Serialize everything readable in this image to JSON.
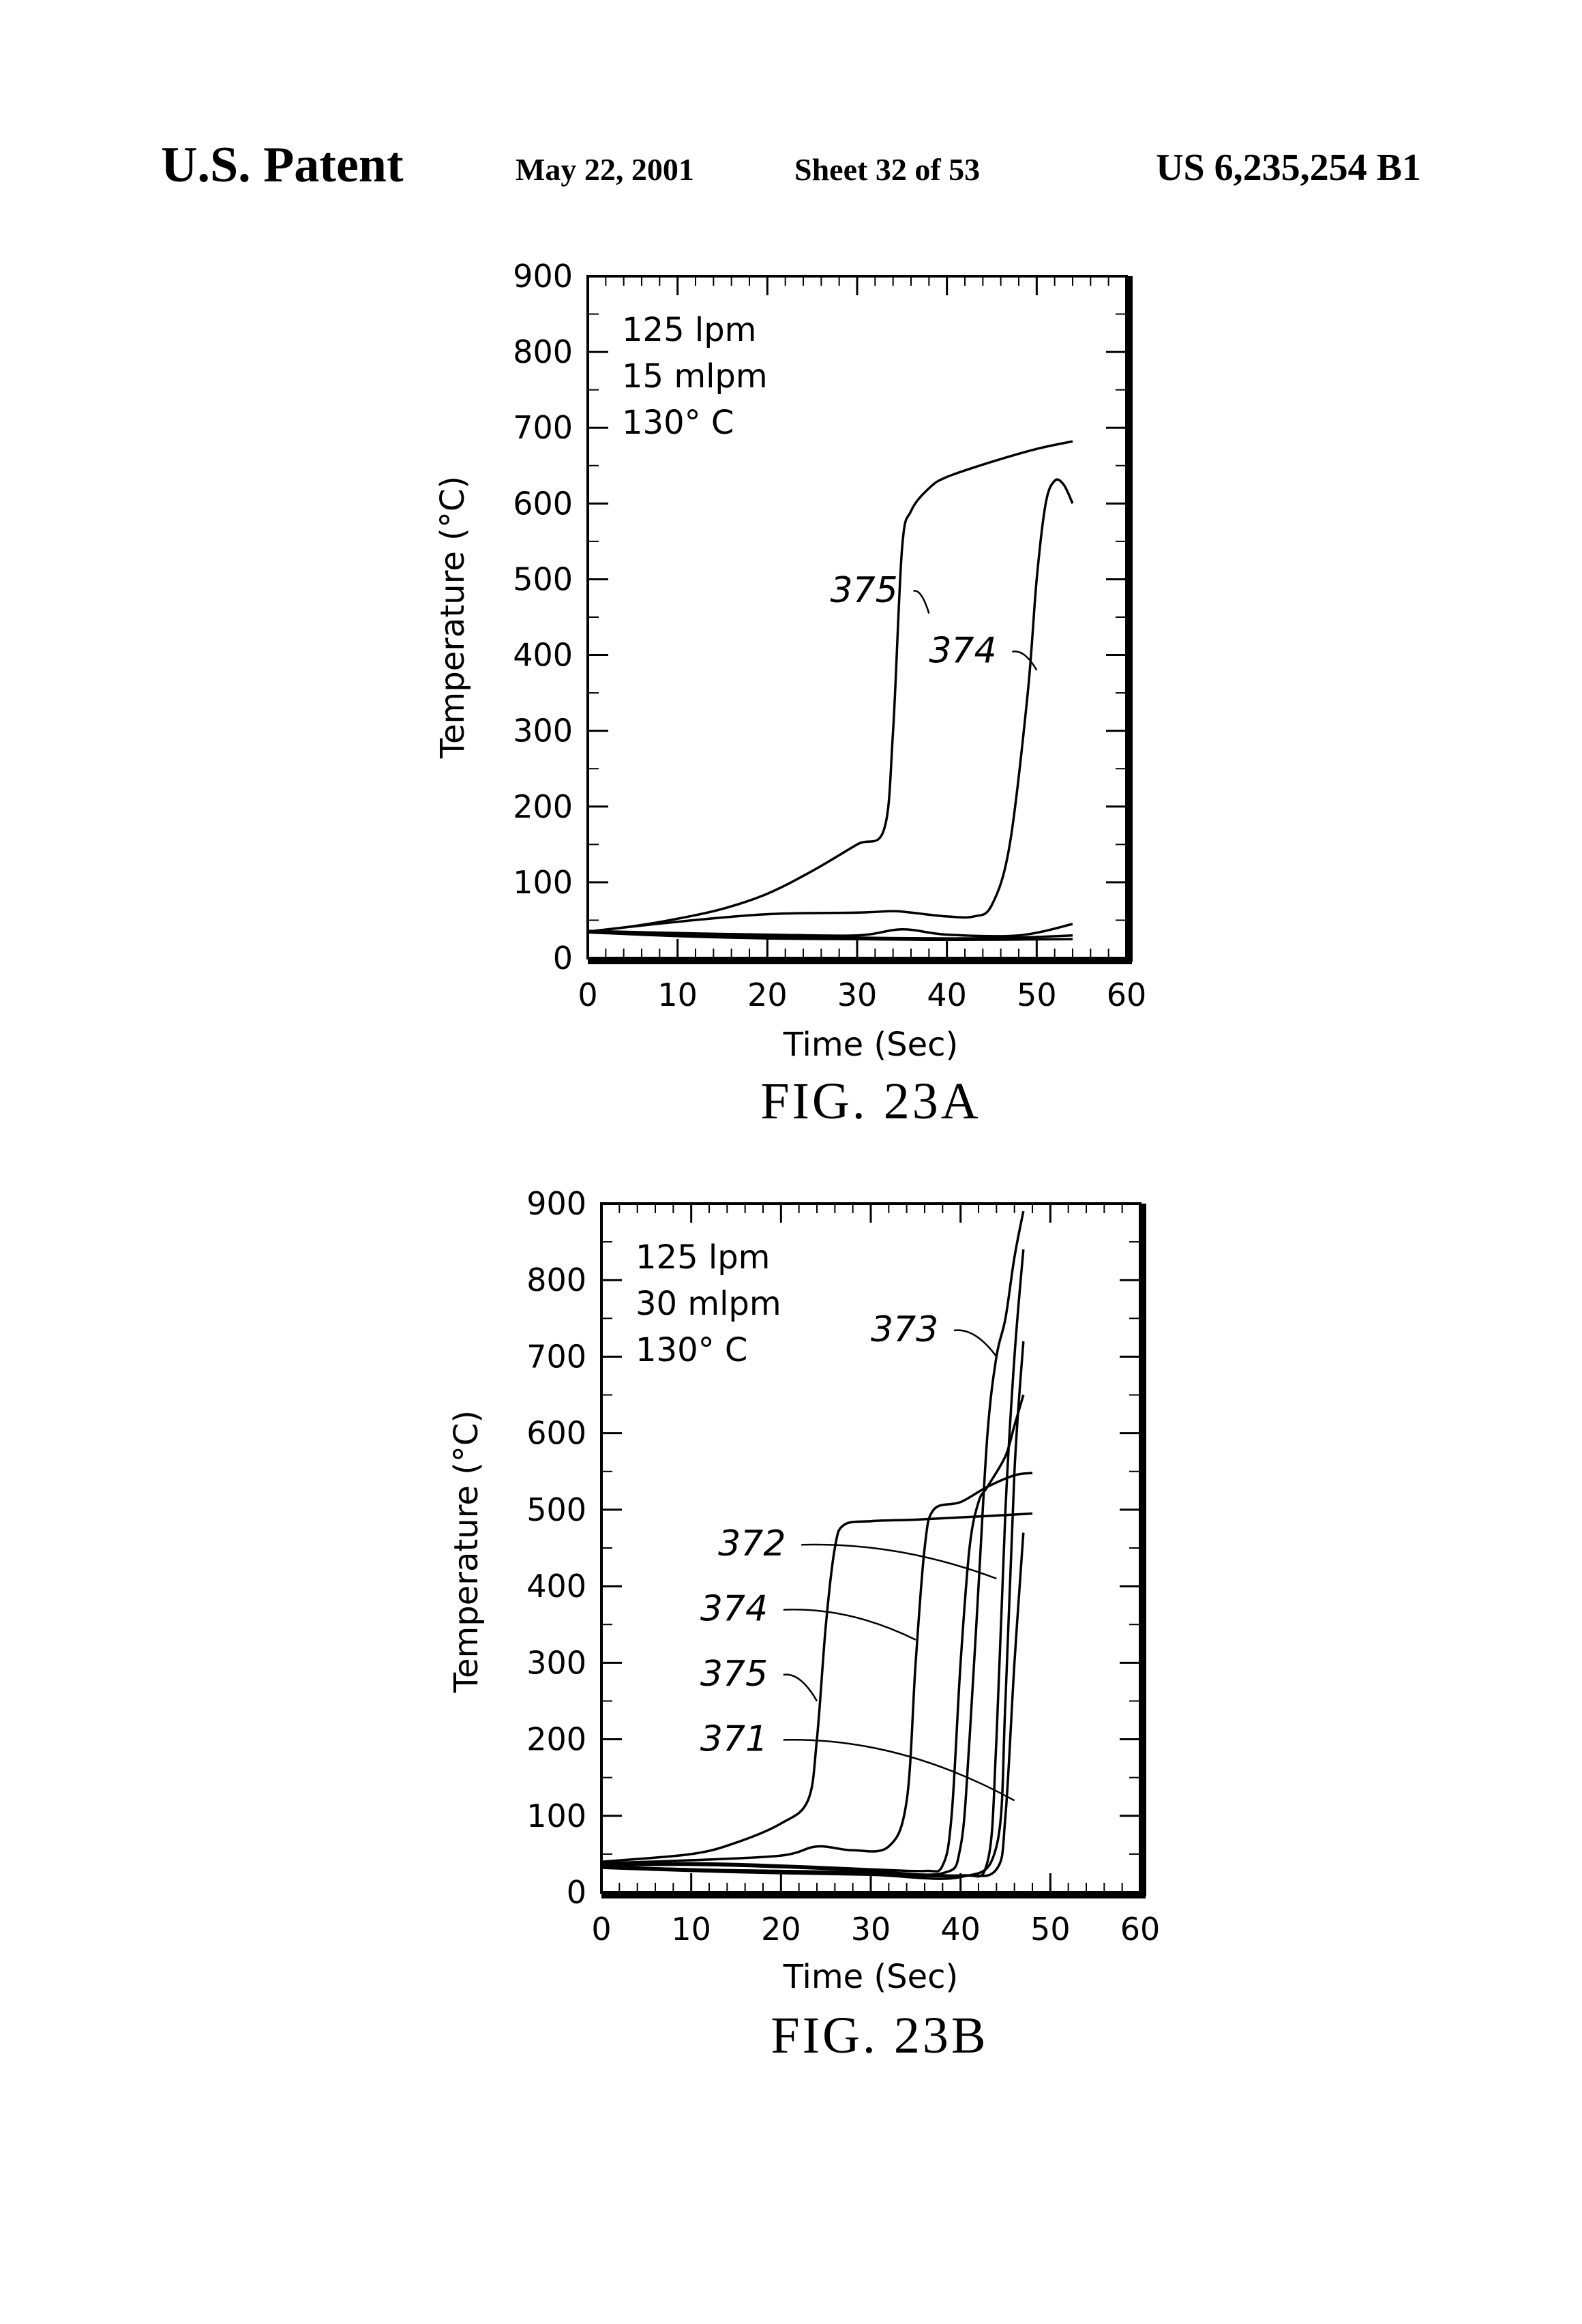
{
  "header": {
    "left": "U.S. Patent",
    "date": "May 22, 2001",
    "sheet": "Sheet 32 of 53",
    "patent_number": "US 6,235,254 B1"
  },
  "chart_data": [
    {
      "type": "line",
      "caption": "FIG. 23A",
      "xlabel": "Time (Sec)",
      "ylabel": "Temperature (°C)",
      "xlim": [
        0,
        60
      ],
      "ylim": [
        0,
        900
      ],
      "xticks": [
        "0",
        "10",
        "20",
        "30",
        "40",
        "50",
        "60"
      ],
      "yticks": [
        "0",
        "100",
        "200",
        "300",
        "400",
        "500",
        "600",
        "700",
        "800",
        "900"
      ],
      "conditions": [
        "125 lpm",
        "15 mlpm",
        "130° C"
      ],
      "curve_labels": [
        {
          "text": "375",
          "x": 27,
          "y": 470,
          "tx": 38,
          "ty": 455
        },
        {
          "text": "374",
          "x": 38,
          "y": 390,
          "tx": 50,
          "ty": 380
        }
      ],
      "series": [
        {
          "name": "375",
          "points": [
            [
              0,
              35
            ],
            [
              5,
              42
            ],
            [
              10,
              52
            ],
            [
              15,
              65
            ],
            [
              20,
              85
            ],
            [
              25,
              115
            ],
            [
              30,
              150
            ],
            [
              33,
              170
            ],
            [
              34,
              300
            ],
            [
              35,
              540
            ],
            [
              36,
              590
            ],
            [
              38,
              620
            ],
            [
              40,
              635
            ],
            [
              45,
              655
            ],
            [
              50,
              672
            ],
            [
              54,
              682
            ]
          ]
        },
        {
          "name": "374",
          "points": [
            [
              0,
              35
            ],
            [
              10,
              48
            ],
            [
              20,
              58
            ],
            [
              30,
              60
            ],
            [
              34,
              62
            ],
            [
              36,
              60
            ],
            [
              40,
              55
            ],
            [
              43,
              55
            ],
            [
              45,
              70
            ],
            [
              47,
              150
            ],
            [
              49,
              350
            ],
            [
              50,
              500
            ],
            [
              51,
              600
            ],
            [
              52,
              630
            ],
            [
              53,
              625
            ],
            [
              54,
              600
            ]
          ]
        },
        {
          "name": "",
          "points": [
            [
              0,
              36
            ],
            [
              10,
              33
            ],
            [
              20,
              31
            ],
            [
              30,
              30
            ],
            [
              35,
              38
            ],
            [
              40,
              31
            ],
            [
              48,
              30
            ],
            [
              54,
              45
            ]
          ]
        },
        {
          "name": "",
          "points": [
            [
              0,
              35
            ],
            [
              10,
              31
            ],
            [
              20,
              28
            ],
            [
              30,
              27
            ],
            [
              40,
              26
            ],
            [
              48,
              27
            ],
            [
              54,
              30
            ]
          ]
        },
        {
          "name": "",
          "points": [
            [
              0,
              34
            ],
            [
              10,
              29
            ],
            [
              20,
              26
            ],
            [
              30,
              25
            ],
            [
              40,
              24
            ],
            [
              54,
              25
            ]
          ]
        }
      ]
    },
    {
      "type": "line",
      "caption": "FIG. 23B",
      "xlabel": "Time (Sec)",
      "ylabel": "Temperature (°C)",
      "xlim": [
        0,
        60
      ],
      "ylim": [
        0,
        900
      ],
      "xticks": [
        "0",
        "10",
        "20",
        "30",
        "40",
        "50",
        "60"
      ],
      "yticks": [
        "0",
        "100",
        "200",
        "300",
        "400",
        "500",
        "600",
        "700",
        "800",
        "900"
      ],
      "conditions": [
        "125 lpm",
        "30 mlpm",
        "130° C"
      ],
      "curve_labels": [
        {
          "text": "373",
          "x": 30,
          "y": 720,
          "tx": 44,
          "ty": 700
        },
        {
          "text": "372",
          "x": 13,
          "y": 440,
          "tx": 44,
          "ty": 410
        },
        {
          "text": "374",
          "x": 11,
          "y": 355,
          "tx": 35,
          "ty": 330
        },
        {
          "text": "375",
          "x": 11,
          "y": 270,
          "tx": 24,
          "ty": 250
        },
        {
          "text": "371",
          "x": 11,
          "y": 185,
          "tx": 46,
          "ty": 120
        }
      ],
      "series": [
        {
          "name": "375",
          "points": [
            [
              0,
              40
            ],
            [
              10,
              50
            ],
            [
              15,
              65
            ],
            [
              20,
              90
            ],
            [
              23,
              120
            ],
            [
              24,
              200
            ],
            [
              25,
              350
            ],
            [
              26,
              450
            ],
            [
              27,
              480
            ],
            [
              30,
              485
            ],
            [
              35,
              487
            ],
            [
              40,
              490
            ],
            [
              45,
              493
            ],
            [
              48,
              495
            ]
          ]
        },
        {
          "name": "374",
          "points": [
            [
              0,
              38
            ],
            [
              10,
              42
            ],
            [
              20,
              48
            ],
            [
              24,
              60
            ],
            [
              28,
              55
            ],
            [
              32,
              60
            ],
            [
              34,
              120
            ],
            [
              35,
              300
            ],
            [
              36,
              450
            ],
            [
              37,
              500
            ],
            [
              40,
              510
            ],
            [
              43,
              530
            ],
            [
              46,
              545
            ],
            [
              48,
              548
            ]
          ]
        },
        {
          "name": "372",
          "points": [
            [
              0,
              36
            ],
            [
              10,
              38
            ],
            [
              20,
              35
            ],
            [
              30,
              30
            ],
            [
              36,
              28
            ],
            [
              38,
              35
            ],
            [
              39,
              100
            ],
            [
              40,
              300
            ],
            [
              41,
              450
            ],
            [
              42,
              510
            ],
            [
              43,
              530
            ],
            [
              45,
              570
            ],
            [
              46,
              610
            ],
            [
              47,
              650
            ]
          ]
        },
        {
          "name": "373",
          "points": [
            [
              0,
              35
            ],
            [
              10,
              36
            ],
            [
              20,
              33
            ],
            [
              30,
              28
            ],
            [
              38,
              25
            ],
            [
              40,
              60
            ],
            [
              41,
              200
            ],
            [
              42,
              400
            ],
            [
              43,
              600
            ],
            [
              44,
              700
            ],
            [
              45,
              750
            ],
            [
              46,
              830
            ],
            [
              47,
              890
            ]
          ]
        },
        {
          "name": "371",
          "points": [
            [
              0,
              34
            ],
            [
              10,
              30
            ],
            [
              20,
              28
            ],
            [
              30,
              26
            ],
            [
              40,
              22
            ],
            [
              44,
              30
            ],
            [
              45,
              100
            ],
            [
              46,
              300
            ],
            [
              47,
              470
            ]
          ]
        },
        {
          "name": "",
          "points": [
            [
              0,
              33
            ],
            [
              10,
              30
            ],
            [
              20,
              26
            ],
            [
              30,
              24
            ],
            [
              40,
              22
            ],
            [
              43,
              40
            ],
            [
              44,
              200
            ],
            [
              45,
              500
            ],
            [
              46,
              700
            ],
            [
              47,
              840
            ]
          ]
        },
        {
          "name": "",
          "points": [
            [
              0,
              32
            ],
            [
              10,
              28
            ],
            [
              20,
              25
            ],
            [
              30,
              23
            ],
            [
              40,
              20
            ],
            [
              44,
              60
            ],
            [
              45,
              250
            ],
            [
              46,
              550
            ],
            [
              47,
              720
            ]
          ]
        }
      ]
    }
  ]
}
